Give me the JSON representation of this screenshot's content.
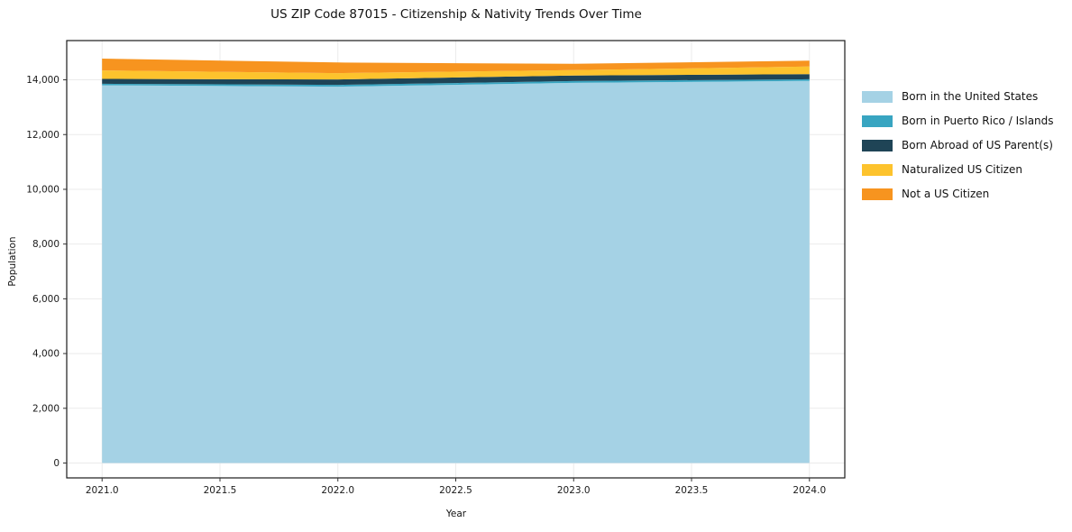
{
  "chart_data": {
    "type": "area",
    "stacked": true,
    "title": "US ZIP Code 87015 - Citizenship & Nativity Trends Over Time",
    "xlabel": "Year",
    "ylabel": "Population",
    "x": [
      2021,
      2022,
      2023,
      2024
    ],
    "series": [
      {
        "name": "Born in the United States",
        "color": "#a5d2e5",
        "values": [
          13800,
          13750,
          13890,
          13960
        ]
      },
      {
        "name": "Born in Puerto Rico / Islands",
        "color": "#38a5c1",
        "values": [
          55,
          65,
          65,
          60
        ]
      },
      {
        "name": "Born Abroad of US Parent(s)",
        "color": "#1f4456",
        "values": [
          180,
          200,
          200,
          190
        ]
      },
      {
        "name": "Naturalized US Citizen",
        "color": "#fdc32d",
        "values": [
          310,
          230,
          200,
          280
        ]
      },
      {
        "name": "Not a US Citizen",
        "color": "#f7941f",
        "values": [
          430,
          390,
          230,
          210
        ]
      }
    ],
    "xticks": [
      {
        "value": 2021.0,
        "label": "2021.0"
      },
      {
        "value": 2021.5,
        "label": "2021.5"
      },
      {
        "value": 2022.0,
        "label": "2022.0"
      },
      {
        "value": 2022.5,
        "label": "2022.5"
      },
      {
        "value": 2023.0,
        "label": "2023.0"
      },
      {
        "value": 2023.5,
        "label": "2023.5"
      },
      {
        "value": 2024.0,
        "label": "2024.0"
      }
    ],
    "yticks": [
      {
        "value": 0,
        "label": "0"
      },
      {
        "value": 2000,
        "label": "2,000"
      },
      {
        "value": 4000,
        "label": "4,000"
      },
      {
        "value": 6000,
        "label": "6,000"
      },
      {
        "value": 8000,
        "label": "8,000"
      },
      {
        "value": 10000,
        "label": "10,000"
      },
      {
        "value": 12000,
        "label": "12,000"
      },
      {
        "value": 14000,
        "label": "14,000"
      }
    ],
    "xlim": [
      2020.85,
      2024.15
    ],
    "ylim": [
      -543,
      15434
    ],
    "grid": true,
    "legend": {
      "position": "right-outside-top"
    }
  },
  "colors": {
    "grid": "#ebebeb",
    "spine": "#1a1a1a",
    "tick": "#333333",
    "tick_text": "#1a1a1a",
    "plot_bg": "#ffffff"
  }
}
